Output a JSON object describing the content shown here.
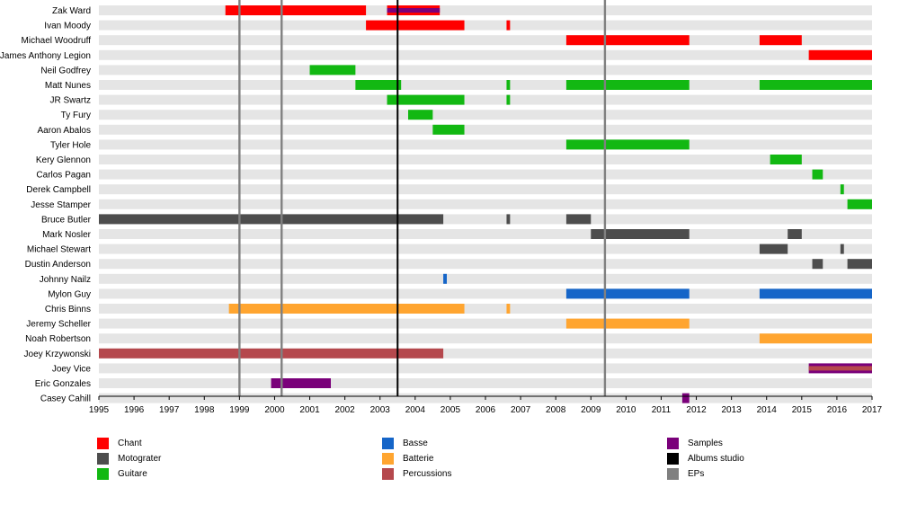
{
  "chart_data": {
    "type": "timeline",
    "x_range": [
      1995,
      2017
    ],
    "x_ticks": [
      "1995",
      "1996",
      "1997",
      "1998",
      "1999",
      "2000",
      "2001",
      "2002",
      "2003",
      "2004",
      "2005",
      "2006",
      "2007",
      "2008",
      "2009",
      "2010",
      "2011",
      "2012",
      "2013",
      "2014",
      "2015",
      "2016",
      "2017"
    ],
    "colors": {
      "Chant": "#ff0000",
      "Motograter": "#4d4d4d",
      "Guitare": "#12b812",
      "Basse": "#1565c8",
      "Batterie": "#ffa530",
      "Percussions": "#b5484d",
      "Samples": "#7a007a",
      "Albums studio": "#000000",
      "EPs": "#808080"
    },
    "members": [
      {
        "name": "Zak Ward",
        "periods": [
          {
            "role": "Chant",
            "start": 1998.6,
            "end": 2002.6
          },
          {
            "role": "Samples",
            "start": 2003.2,
            "end": 2004.7,
            "overlay": "Chant"
          }
        ]
      },
      {
        "name": "Ivan Moody",
        "periods": [
          {
            "role": "Chant",
            "start": 2002.6,
            "end": 2005.4
          },
          {
            "role": "Chant",
            "start": 2006.6,
            "end": 2006.7
          }
        ]
      },
      {
        "name": "Michael Woodruff",
        "periods": [
          {
            "role": "Chant",
            "start": 2008.3,
            "end": 2011.8
          },
          {
            "role": "Chant",
            "start": 2013.8,
            "end": 2015.0
          }
        ]
      },
      {
        "name": "James Anthony Legion",
        "periods": [
          {
            "role": "Chant",
            "start": 2015.2,
            "end": 2017.0
          }
        ]
      },
      {
        "name": "Neil Godfrey",
        "periods": [
          {
            "role": "Guitare",
            "start": 2001.0,
            "end": 2002.3
          }
        ]
      },
      {
        "name": "Matt Nunes",
        "periods": [
          {
            "role": "Guitare",
            "start": 2002.3,
            "end": 2003.6
          },
          {
            "role": "Guitare",
            "start": 2006.6,
            "end": 2006.7
          },
          {
            "role": "Guitare",
            "start": 2008.3,
            "end": 2011.8
          },
          {
            "role": "Guitare",
            "start": 2013.8,
            "end": 2017.0
          }
        ]
      },
      {
        "name": "JR Swartz",
        "periods": [
          {
            "role": "Guitare",
            "start": 2003.2,
            "end": 2005.4
          },
          {
            "role": "Guitare",
            "start": 2006.6,
            "end": 2006.7
          }
        ]
      },
      {
        "name": "Ty Fury",
        "periods": [
          {
            "role": "Guitare",
            "start": 2003.8,
            "end": 2004.5
          }
        ]
      },
      {
        "name": "Aaron Abalos",
        "periods": [
          {
            "role": "Guitare",
            "start": 2004.5,
            "end": 2005.4
          }
        ]
      },
      {
        "name": "Tyler Hole",
        "periods": [
          {
            "role": "Guitare",
            "start": 2008.3,
            "end": 2011.8
          }
        ]
      },
      {
        "name": "Kery Glennon",
        "periods": [
          {
            "role": "Guitare",
            "start": 2014.1,
            "end": 2015.0
          }
        ]
      },
      {
        "name": "Carlos Pagan",
        "periods": [
          {
            "role": "Guitare",
            "start": 2015.3,
            "end": 2015.6
          }
        ]
      },
      {
        "name": "Derek Campbell",
        "periods": [
          {
            "role": "Guitare",
            "start": 2016.1,
            "end": 2016.2
          }
        ]
      },
      {
        "name": "Jesse Stamper",
        "periods": [
          {
            "role": "Guitare",
            "start": 2016.3,
            "end": 2017.0
          }
        ]
      },
      {
        "name": "Bruce Butler",
        "periods": [
          {
            "role": "Motograter",
            "start": 1995.0,
            "end": 2004.8
          },
          {
            "role": "Motograter",
            "start": 2006.6,
            "end": 2006.7
          },
          {
            "role": "Motograter",
            "start": 2008.3,
            "end": 2009.0
          }
        ]
      },
      {
        "name": "Mark Nosler",
        "periods": [
          {
            "role": "Motograter",
            "start": 2009.0,
            "end": 2011.8
          },
          {
            "role": "Motograter",
            "start": 2014.6,
            "end": 2015.0
          }
        ]
      },
      {
        "name": "Michael Stewart",
        "periods": [
          {
            "role": "Motograter",
            "start": 2013.8,
            "end": 2014.6
          },
          {
            "role": "Motograter",
            "start": 2016.1,
            "end": 2016.2
          }
        ]
      },
      {
        "name": "Dustin Anderson",
        "periods": [
          {
            "role": "Motograter",
            "start": 2015.3,
            "end": 2015.6
          },
          {
            "role": "Motograter",
            "start": 2016.3,
            "end": 2017.0
          }
        ]
      },
      {
        "name": "Johnny Nailz",
        "periods": [
          {
            "role": "Basse",
            "start": 2004.8,
            "end": 2004.9
          }
        ]
      },
      {
        "name": "Mylon Guy",
        "periods": [
          {
            "role": "Basse",
            "start": 2008.3,
            "end": 2011.8
          },
          {
            "role": "Basse",
            "start": 2013.8,
            "end": 2017.0
          }
        ]
      },
      {
        "name": "Chris Binns",
        "periods": [
          {
            "role": "Batterie",
            "start": 1998.7,
            "end": 2005.4
          },
          {
            "role": "Batterie",
            "start": 2006.6,
            "end": 2006.7
          }
        ]
      },
      {
        "name": "Jeremy Scheller",
        "periods": [
          {
            "role": "Batterie",
            "start": 2008.3,
            "end": 2011.8
          }
        ]
      },
      {
        "name": "Noah Robertson",
        "periods": [
          {
            "role": "Batterie",
            "start": 2013.8,
            "end": 2017.0
          }
        ]
      },
      {
        "name": "Joey Krzywonski",
        "periods": [
          {
            "role": "Percussions",
            "start": 1995.0,
            "end": 2004.8
          }
        ]
      },
      {
        "name": "Joey Vice",
        "periods": [
          {
            "role": "Percussions",
            "start": 2015.2,
            "end": 2017.0,
            "overlay": "Samples"
          }
        ]
      },
      {
        "name": "Eric Gonzales",
        "periods": [
          {
            "role": "Samples",
            "start": 1999.9,
            "end": 2001.6
          }
        ]
      },
      {
        "name": "Casey Cahill",
        "periods": [
          {
            "role": "Samples",
            "start": 2011.6,
            "end": 2011.8
          }
        ]
      }
    ],
    "events": [
      {
        "type": "EPs",
        "x": 1999.0
      },
      {
        "type": "EPs",
        "x": 2000.2
      },
      {
        "type": "Albums studio",
        "x": 2003.5
      },
      {
        "type": "EPs",
        "x": 2009.4
      }
    ],
    "legend": [
      {
        "label": "Chant",
        "key": "Chant"
      },
      {
        "label": "Basse",
        "key": "Basse"
      },
      {
        "label": "Samples",
        "key": "Samples"
      },
      {
        "label": "Motograter",
        "key": "Motograter"
      },
      {
        "label": "Batterie",
        "key": "Batterie"
      },
      {
        "label": "Albums studio",
        "key": "Albums studio"
      },
      {
        "label": "Guitare",
        "key": "Guitare"
      },
      {
        "label": "Percussions",
        "key": "Percussions"
      },
      {
        "label": "EPs",
        "key": "EPs"
      }
    ]
  }
}
